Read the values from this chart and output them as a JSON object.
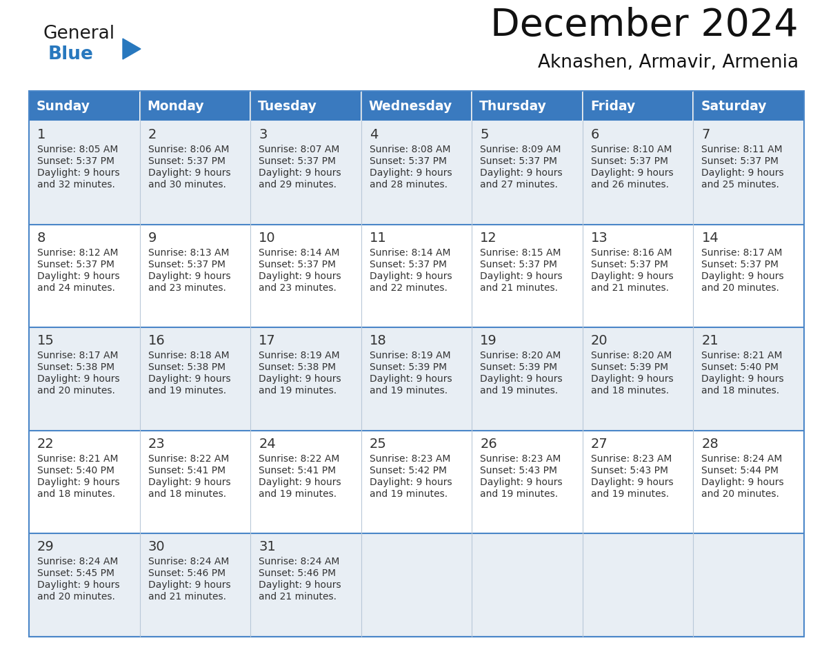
{
  "title": "December 2024",
  "subtitle": "Aknashen, Armavir, Armenia",
  "header_color": "#3a7abf",
  "header_text_color": "#ffffff",
  "row_colors": [
    "#e8eef4",
    "#ffffff",
    "#e8eef4",
    "#ffffff",
    "#e8eef4"
  ],
  "border_color": "#4a86c8",
  "text_color": "#333333",
  "days_of_week": [
    "Sunday",
    "Monday",
    "Tuesday",
    "Wednesday",
    "Thursday",
    "Friday",
    "Saturday"
  ],
  "weeks": [
    [
      {
        "day": 1,
        "sunrise": "8:05 AM",
        "sunset": "5:37 PM",
        "daylight_extra": "and 32 minutes."
      },
      {
        "day": 2,
        "sunrise": "8:06 AM",
        "sunset": "5:37 PM",
        "daylight_extra": "and 30 minutes."
      },
      {
        "day": 3,
        "sunrise": "8:07 AM",
        "sunset": "5:37 PM",
        "daylight_extra": "and 29 minutes."
      },
      {
        "day": 4,
        "sunrise": "8:08 AM",
        "sunset": "5:37 PM",
        "daylight_extra": "and 28 minutes."
      },
      {
        "day": 5,
        "sunrise": "8:09 AM",
        "sunset": "5:37 PM",
        "daylight_extra": "and 27 minutes."
      },
      {
        "day": 6,
        "sunrise": "8:10 AM",
        "sunset": "5:37 PM",
        "daylight_extra": "and 26 minutes."
      },
      {
        "day": 7,
        "sunrise": "8:11 AM",
        "sunset": "5:37 PM",
        "daylight_extra": "and 25 minutes."
      }
    ],
    [
      {
        "day": 8,
        "sunrise": "8:12 AM",
        "sunset": "5:37 PM",
        "daylight_extra": "and 24 minutes."
      },
      {
        "day": 9,
        "sunrise": "8:13 AM",
        "sunset": "5:37 PM",
        "daylight_extra": "and 23 minutes."
      },
      {
        "day": 10,
        "sunrise": "8:14 AM",
        "sunset": "5:37 PM",
        "daylight_extra": "and 23 minutes."
      },
      {
        "day": 11,
        "sunrise": "8:14 AM",
        "sunset": "5:37 PM",
        "daylight_extra": "and 22 minutes."
      },
      {
        "day": 12,
        "sunrise": "8:15 AM",
        "sunset": "5:37 PM",
        "daylight_extra": "and 21 minutes."
      },
      {
        "day": 13,
        "sunrise": "8:16 AM",
        "sunset": "5:37 PM",
        "daylight_extra": "and 21 minutes."
      },
      {
        "day": 14,
        "sunrise": "8:17 AM",
        "sunset": "5:37 PM",
        "daylight_extra": "and 20 minutes."
      }
    ],
    [
      {
        "day": 15,
        "sunrise": "8:17 AM",
        "sunset": "5:38 PM",
        "daylight_extra": "and 20 minutes."
      },
      {
        "day": 16,
        "sunrise": "8:18 AM",
        "sunset": "5:38 PM",
        "daylight_extra": "and 19 minutes."
      },
      {
        "day": 17,
        "sunrise": "8:19 AM",
        "sunset": "5:38 PM",
        "daylight_extra": "and 19 minutes."
      },
      {
        "day": 18,
        "sunrise": "8:19 AM",
        "sunset": "5:39 PM",
        "daylight_extra": "and 19 minutes."
      },
      {
        "day": 19,
        "sunrise": "8:20 AM",
        "sunset": "5:39 PM",
        "daylight_extra": "and 19 minutes."
      },
      {
        "day": 20,
        "sunrise": "8:20 AM",
        "sunset": "5:39 PM",
        "daylight_extra": "and 18 minutes."
      },
      {
        "day": 21,
        "sunrise": "8:21 AM",
        "sunset": "5:40 PM",
        "daylight_extra": "and 18 minutes."
      }
    ],
    [
      {
        "day": 22,
        "sunrise": "8:21 AM",
        "sunset": "5:40 PM",
        "daylight_extra": "and 18 minutes."
      },
      {
        "day": 23,
        "sunrise": "8:22 AM",
        "sunset": "5:41 PM",
        "daylight_extra": "and 18 minutes."
      },
      {
        "day": 24,
        "sunrise": "8:22 AM",
        "sunset": "5:41 PM",
        "daylight_extra": "and 19 minutes."
      },
      {
        "day": 25,
        "sunrise": "8:23 AM",
        "sunset": "5:42 PM",
        "daylight_extra": "and 19 minutes."
      },
      {
        "day": 26,
        "sunrise": "8:23 AM",
        "sunset": "5:43 PM",
        "daylight_extra": "and 19 minutes."
      },
      {
        "day": 27,
        "sunrise": "8:23 AM",
        "sunset": "5:43 PM",
        "daylight_extra": "and 19 minutes."
      },
      {
        "day": 28,
        "sunrise": "8:24 AM",
        "sunset": "5:44 PM",
        "daylight_extra": "and 20 minutes."
      }
    ],
    [
      {
        "day": 29,
        "sunrise": "8:24 AM",
        "sunset": "5:45 PM",
        "daylight_extra": "and 20 minutes."
      },
      {
        "day": 30,
        "sunrise": "8:24 AM",
        "sunset": "5:46 PM",
        "daylight_extra": "and 21 minutes."
      },
      {
        "day": 31,
        "sunrise": "8:24 AM",
        "sunset": "5:46 PM",
        "daylight_extra": "and 21 minutes."
      },
      null,
      null,
      null,
      null
    ]
  ],
  "logo_color_general": "#1a1a1a",
  "logo_color_blue": "#2878be",
  "logo_triangle_color": "#2878be"
}
